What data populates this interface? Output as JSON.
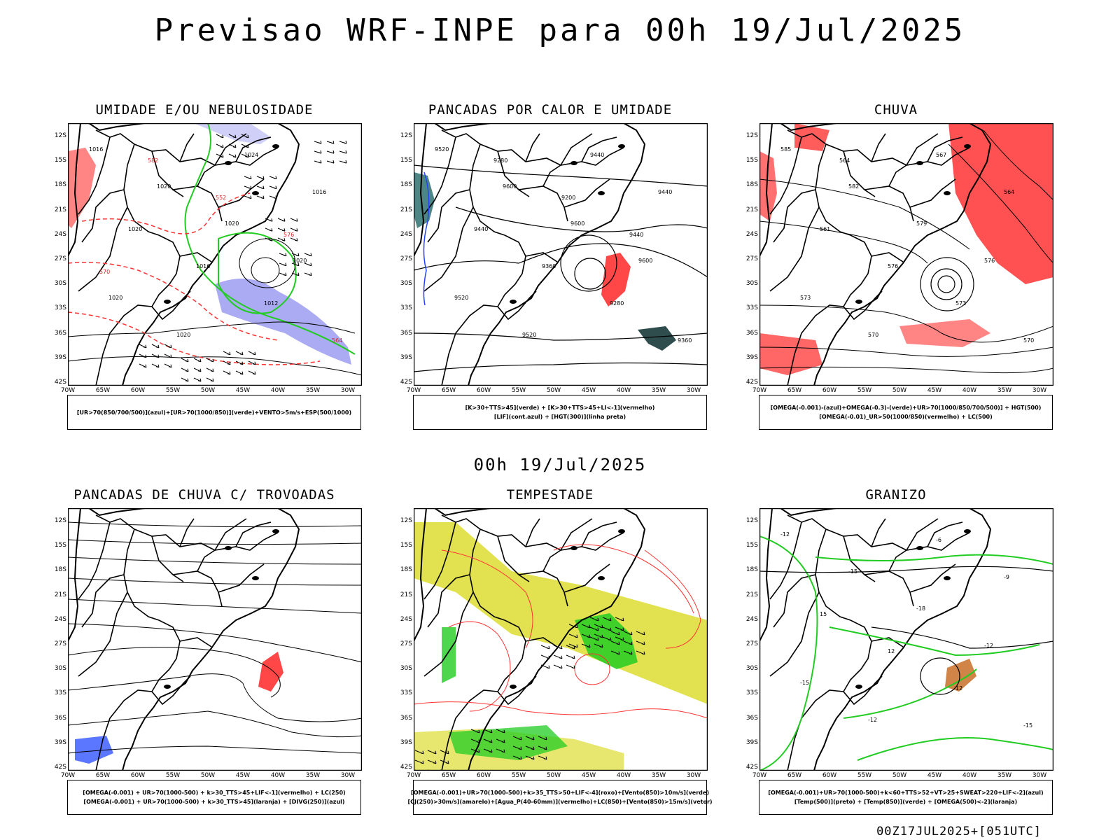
{
  "header": {
    "title": "Previsao WRF-INPE  para 00h 19/Jul/2025"
  },
  "middle_date": "00h 19/Jul/2025",
  "footer": "00Z17JUL2025+[051UTC]",
  "axes": {
    "lat_labels": [
      "12S",
      "15S",
      "18S",
      "21S",
      "24S",
      "27S",
      "30S",
      "33S",
      "36S",
      "39S",
      "42S"
    ],
    "lon_labels": [
      "70W",
      "65W",
      "60W",
      "55W",
      "50W",
      "45W",
      "40W",
      "35W",
      "30W"
    ]
  },
  "panels": [
    {
      "id": "umidade",
      "title": "UMIDADE E/OU NEBULOSIDADE",
      "legend": [
        "[UR>70(850/700/500)](azul)+[UR>70(1000/850)](verde)+VENTO>5m/s+ESP(500/1000)"
      ],
      "labels": [
        "1016",
        "1020",
        "1020",
        "1020",
        "1020",
        "1020",
        "1024",
        "1016",
        "1020",
        "1016",
        "1012",
        "564",
        "582",
        "552",
        "576",
        "570"
      ]
    },
    {
      "id": "pancadas-calor",
      "title": "PANCADAS POR CALOR E UMIDADE",
      "legend": [
        "[K>30+TTS>45](verde) + [K>30+TTS>45+LI<-1](vermelho)",
        "[LIF](cont.azul) + [HGT(300)](linha preta)"
      ],
      "labels": [
        "9520",
        "9600",
        "9600",
        "9600",
        "9520",
        "9520",
        "9440",
        "9440",
        "9440",
        "9360",
        "9280",
        "9360",
        "9280",
        "9200",
        "9440"
      ]
    },
    {
      "id": "chuva",
      "title": "CHUVA",
      "legend": [
        "[OMEGA(-0.001)-(azul)+OMEGA(-0.3)-(verde)+UR>70(1000/850/700/500)] + HGT(500)",
        "[OMEGA(-0.01)_UR>50(1000/850)(vermelho) + LC(500)"
      ],
      "labels": [
        "585",
        "582",
        "579",
        "576",
        "573",
        "570",
        "567",
        "564",
        "561",
        "576",
        "573",
        "570",
        "564"
      ]
    },
    {
      "id": "trovoadas",
      "title": "PANCADAS DE CHUVA C/ TROVOADAS",
      "legend": [
        "[OMEGA(-0.001) + UR>70(1000-500) + k>30_TTS>45+LIF<-1](vermelho) + LC(250)",
        "[OMEGA(-0.001) + UR>70(1000-500) + k>30_TTS>45](laranja) + [DIVG(250)](azul)"
      ],
      "labels": []
    },
    {
      "id": "tempestade",
      "title": "TEMPESTADE",
      "legend": [
        "[OMEGA(-0.001)+UR>70(1000-500)+k>35_TTS>50+LIF<-4](roxo)+[Vento(850)>10m/s](verde)",
        "[CJ(250)>30m/s](amarelo)+[Agua_P(40-60mm)](vermelho)+LC(850)+[Vento(850)>15m/s](vetor)"
      ],
      "labels": []
    },
    {
      "id": "granizo",
      "title": "GRANIZO",
      "legend": [
        "[OMEGA(-0.001)+UR>70(1000-500)+k<60+TTS>52+VT>25+SWEAT>220+LIF<-2](azul)",
        "[Temp(500)](preto) + [Temp(850)](verde) + [OMEGA(500)<-2](laranja)"
      ],
      "labels": [
        "-12",
        "-15",
        "-18",
        "-12",
        "-15",
        "-12",
        "-6",
        "-9",
        "15",
        "12",
        "12",
        "-15"
      ]
    }
  ]
}
